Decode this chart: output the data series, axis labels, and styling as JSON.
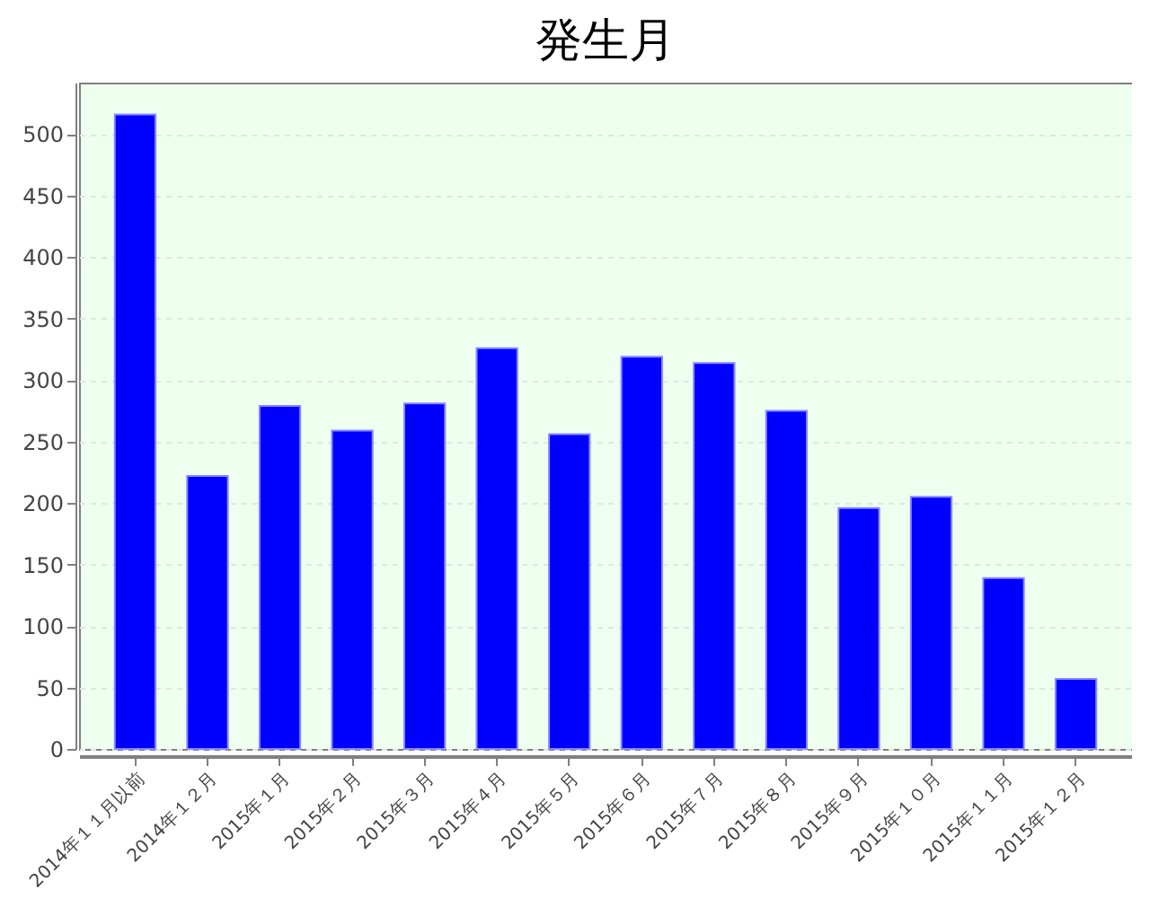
{
  "chart_data": {
    "type": "bar",
    "title": "発生月",
    "categories": [
      "2014年１１月以前",
      "2014年１２月",
      "2015年１月",
      "2015年２月",
      "2015年３月",
      "2015年４月",
      "2015年５月",
      "2015年６月",
      "2015年７月",
      "2015年８月",
      "2015年９月",
      "2015年１０月",
      "2015年１１月",
      "2015年１２月"
    ],
    "values": [
      516,
      222,
      279,
      259,
      281,
      326,
      256,
      319,
      314,
      275,
      196,
      205,
      139,
      57
    ],
    "color": "#0000ff",
    "ylim": [
      0,
      542
    ],
    "yticks": [
      0,
      50,
      100,
      150,
      200,
      250,
      300,
      350,
      400,
      450,
      500
    ],
    "grid": "y"
  }
}
